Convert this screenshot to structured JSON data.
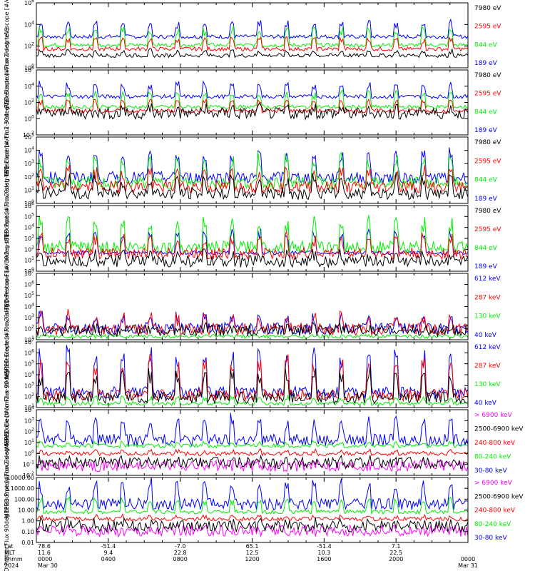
{
  "colors": {
    "blue": "#0000ff",
    "red": "#ff0000",
    "green": "#00ee00",
    "black": "#000000",
    "magenta": "#ff00ff"
  },
  "footer": {
    "rows": [
      {
        "label": "Lat",
        "values": [
          "78.6",
          "-51.4",
          "-7.0",
          "65.1",
          "-51.4",
          "7.1",
          ""
        ]
      },
      {
        "label": "MLT",
        "values": [
          "11.6",
          "9.4",
          "22.8",
          "12.5",
          "10.3",
          "22.5",
          ""
        ]
      },
      {
        "label": "hhmm",
        "values": [
          "0000",
          "0400",
          "0800",
          "1200",
          "1600",
          "2000",
          "0000"
        ]
      },
      {
        "label": "2024",
        "values": [
          "Mar 30",
          "",
          "",
          "",
          "",
          "",
          "Mar 31"
        ]
      }
    ]
  },
  "chart_data": [
    {
      "type": "line",
      "title": "",
      "xlabel": "",
      "ylabel": "TED Electron Flux 0deg telescope [#/cm2-s-str-eV]",
      "y_scale": "log",
      "ylim": [
        1,
        1000000
      ],
      "ytick_labels": [
        "10^0",
        "10^2",
        "10^4",
        "10^6"
      ],
      "series": [
        {
          "name": "7980 eV",
          "color": "black"
        },
        {
          "name": "2595 eV",
          "color": "red"
        },
        {
          "name": "844 eV",
          "color": "green"
        },
        {
          "name": "189 eV",
          "color": "blue"
        }
      ]
    },
    {
      "type": "line",
      "title": "",
      "xlabel": "",
      "ylabel": "TED Electron Flux 30deg telescope [#/cm2-s-str-eV]",
      "y_scale": "log",
      "ylim": [
        0.01,
        1000000
      ],
      "ytick_labels": [
        "10^-2",
        "10^0",
        "10^2",
        "10^4",
        "10^6"
      ],
      "series": [
        {
          "name": "7980 eV",
          "color": "black"
        },
        {
          "name": "2595 eV",
          "color": "red"
        },
        {
          "name": "844 eV",
          "color": "green"
        },
        {
          "name": "189 eV",
          "color": "blue"
        }
      ]
    },
    {
      "type": "line",
      "title": "",
      "xlabel": "",
      "ylabel": "TED Proton Flux 0deg telescope [#/cm2-s-str-eV]",
      "y_scale": "log",
      "ylim": [
        1,
        100000
      ],
      "ytick_labels": [
        "10^0",
        "10^1",
        "10^2",
        "10^3",
        "10^4",
        "10^5"
      ],
      "series": [
        {
          "name": "7980 eV",
          "color": "black"
        },
        {
          "name": "2595 eV",
          "color": "red"
        },
        {
          "name": "844 eV",
          "color": "green"
        },
        {
          "name": "189 eV",
          "color": "blue"
        }
      ]
    },
    {
      "type": "line",
      "title": "",
      "xlabel": "",
      "ylabel": "TED Proton Flux 30deg telescope [#/cm2-s-str-eV]",
      "y_scale": "log",
      "ylim": [
        1,
        1000000
      ],
      "ytick_labels": [
        "10^0",
        "10^1",
        "10^2",
        "10^3",
        "10^4",
        "10^5",
        "10^6"
      ],
      "series": [
        {
          "name": "7980 eV",
          "color": "black"
        },
        {
          "name": "2595 eV",
          "color": "red"
        },
        {
          "name": "844 eV",
          "color": "green"
        },
        {
          "name": "189 eV",
          "color": "blue"
        }
      ]
    },
    {
      "type": "line",
      "title": "",
      "xlabel": "",
      "ylabel": "MEPED Electron Flux 0deg telescope [#/cm2-s-str]",
      "y_scale": "log",
      "ylim": [
        10,
        10000000
      ],
      "ytick_labels": [
        "10^1",
        "10^2",
        "10^3",
        "10^4",
        "10^5",
        "10^6",
        "10^7"
      ],
      "series": [
        {
          "name": "612 keV",
          "color": "blue"
        },
        {
          "name": "287 keV",
          "color": "red"
        },
        {
          "name": "130 keV",
          "color": "green"
        },
        {
          "name": "40 keV",
          "color": "blue"
        }
      ]
    },
    {
      "type": "line",
      "title": "",
      "xlabel": "",
      "ylabel": "MEPED Electron Flux 90deg telescope [#/cm2-s-str]",
      "y_scale": "log",
      "ylim": [
        10,
        10000000
      ],
      "ytick_labels": [
        "10^1",
        "10^2",
        "10^3",
        "10^4",
        "10^5",
        "10^6",
        "10^7"
      ],
      "series": [
        {
          "name": "612 keV",
          "color": "blue"
        },
        {
          "name": "287 keV",
          "color": "red"
        },
        {
          "name": "130 keV",
          "color": "green"
        },
        {
          "name": "40 keV",
          "color": "blue"
        }
      ]
    },
    {
      "type": "line",
      "title": "",
      "xlabel": "",
      "ylabel": "MEPED Proton Flux 0deg telescope [#/cm2-s-str-keV]",
      "y_scale": "log",
      "ylim": [
        0.01,
        10000
      ],
      "ytick_labels": [
        "10^-2",
        "10^-1",
        "10^0",
        "10^1",
        "10^2",
        "10^3",
        "10^4"
      ],
      "series": [
        {
          "name": "> 6900 keV",
          "color": "magenta"
        },
        {
          "name": "2500-6900 keV",
          "color": "black"
        },
        {
          "name": "240-800 keV",
          "color": "red"
        },
        {
          "name": "80-240 keV",
          "color": "green"
        },
        {
          "name": "30-80 keV",
          "color": "blue"
        }
      ]
    },
    {
      "type": "line",
      "title": "",
      "xlabel": "",
      "ylabel": "MEPED Proton Flux 90deg telescope [#/cm2-s-str-keV]",
      "y_scale": "log",
      "ylim": [
        0.01,
        10000
      ],
      "ytick_labels": [
        "0.01",
        "0.10",
        "1.00",
        "10.00",
        "100.00",
        "1000.00",
        "10000.00"
      ],
      "series": [
        {
          "name": "> 6900 keV",
          "color": "magenta"
        },
        {
          "name": "2500-6900 keV",
          "color": "black"
        },
        {
          "name": "240-800 keV",
          "color": "red"
        },
        {
          "name": "80-240 keV",
          "color": "green"
        },
        {
          "name": "30-80 keV",
          "color": "blue"
        }
      ]
    }
  ]
}
